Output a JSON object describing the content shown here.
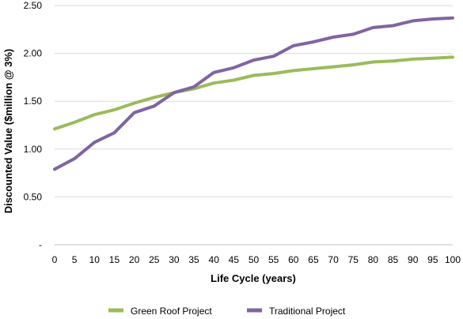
{
  "chart_data": {
    "type": "line",
    "xlabel": "Life Cycle (years)",
    "ylabel": "Discounted Value ($million @ 3%)",
    "x": [
      0,
      5,
      10,
      15,
      20,
      25,
      30,
      35,
      40,
      45,
      50,
      55,
      60,
      65,
      70,
      75,
      80,
      85,
      90,
      95,
      100
    ],
    "xlim": [
      0,
      100
    ],
    "ylim": [
      0,
      2.5
    ],
    "y_ticks": [
      0,
      0.5,
      1.0,
      1.5,
      2.0,
      2.5
    ],
    "y_tick_labels": [
      "-",
      "0.50",
      "1.00",
      "1.50",
      "2.00",
      "2.50"
    ],
    "grid": "horizontal",
    "legend_position": "bottom",
    "series": [
      {
        "name": "Green Roof Project",
        "color": "#9bbb59",
        "values": [
          1.21,
          1.28,
          1.36,
          1.41,
          1.48,
          1.54,
          1.59,
          1.63,
          1.69,
          1.72,
          1.77,
          1.79,
          1.82,
          1.84,
          1.86,
          1.88,
          1.91,
          1.92,
          1.94,
          1.95,
          1.96
        ]
      },
      {
        "name": "Traditional Project",
        "color": "#8064a2",
        "values": [
          0.79,
          0.9,
          1.07,
          1.17,
          1.38,
          1.45,
          1.59,
          1.65,
          1.8,
          1.85,
          1.93,
          1.97,
          2.08,
          2.12,
          2.17,
          2.2,
          2.27,
          2.29,
          2.34,
          2.36,
          2.37
        ]
      }
    ]
  }
}
